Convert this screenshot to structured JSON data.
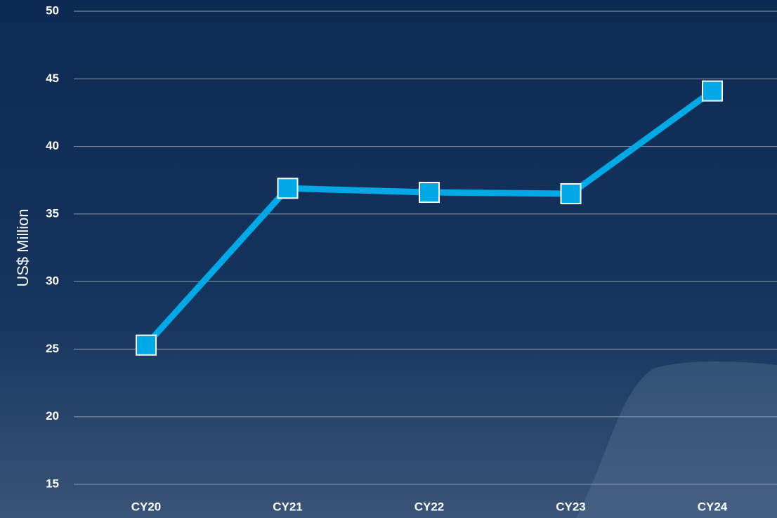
{
  "chart_data": {
    "type": "line",
    "y_label": "US$ Million",
    "categories": [
      "CY20",
      "CY21",
      "CY22",
      "CY23",
      "CY24"
    ],
    "values": [
      25.3,
      36.9,
      36.6,
      36.5,
      44.1
    ],
    "color": "#00a9e6",
    "ylim": [
      15,
      50
    ],
    "yticks": [
      15,
      20,
      25,
      30,
      35,
      40,
      45,
      50
    ],
    "grid": true
  }
}
